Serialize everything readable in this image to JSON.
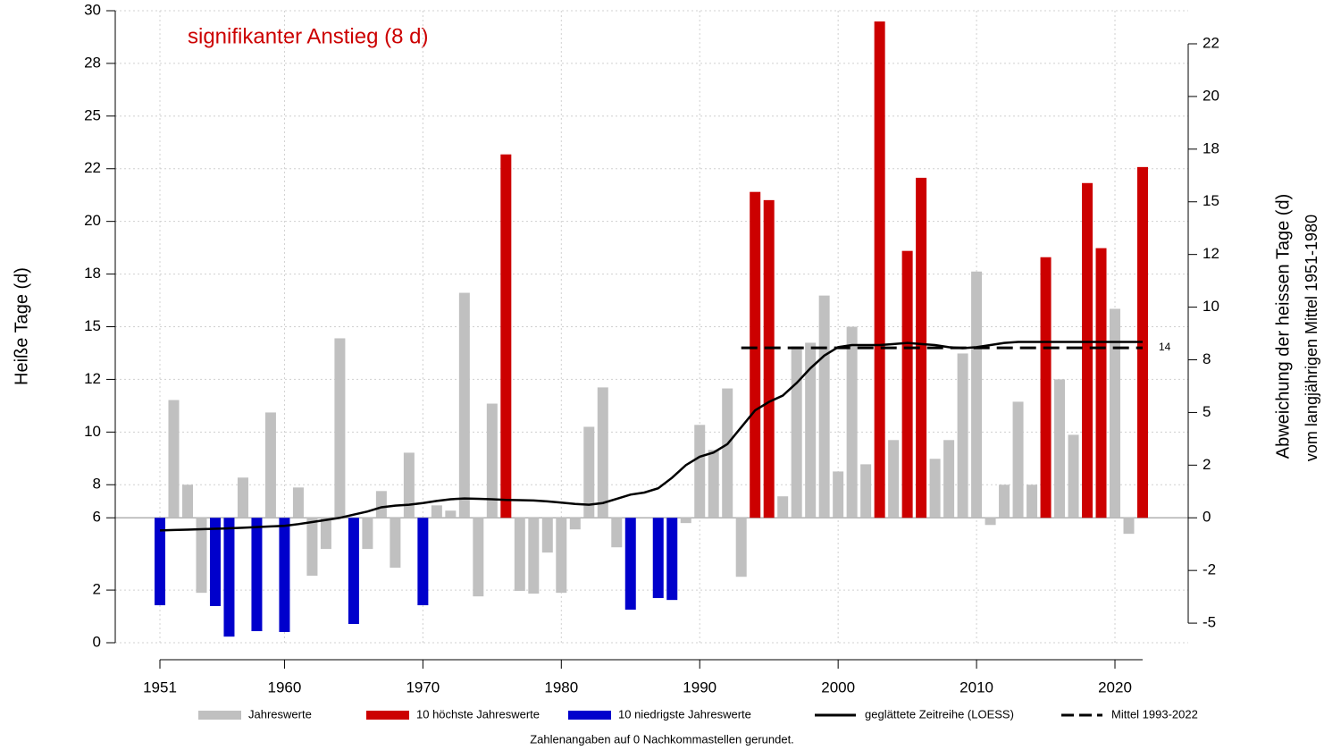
{
  "chart_data": {
    "type": "bar",
    "annotation": "signifikanter Anstieg (8 d)",
    "ylabel": "Heiße Tage (d)",
    "y2label": [
      "Abweichung der heissen Tage (d)",
      "vom langjährigen Mittel 1951-1980"
    ],
    "footnote": "Zahlenangaben auf 0 Nachkommastellen gerundet.",
    "grid": true,
    "xlim": [
      1951,
      2022
    ],
    "xticks": [
      1951,
      1960,
      1970,
      1980,
      1990,
      2000,
      2010,
      2020
    ],
    "ylim": [
      0,
      30
    ],
    "yticks": [
      0,
      {
        "value": 2.5,
        "label": "2"
      },
      {
        "value": 5.93,
        "label": "6"
      },
      {
        "value": 7.5,
        "label": "8"
      },
      10,
      {
        "value": 12.5,
        "label": "12"
      },
      15,
      {
        "value": 17.5,
        "label": "18"
      },
      20,
      {
        "value": 22.5,
        "label": "22"
      },
      25,
      {
        "value": 27.5,
        "label": "28"
      },
      30
    ],
    "y2lim": [
      -5.93,
      24.07
    ],
    "y2ticks": [
      -5,
      {
        "value": -2.5,
        "label": "-2"
      },
      0,
      {
        "value": 2.5,
        "label": "2"
      },
      5,
      {
        "value": 7.5,
        "label": "8"
      },
      10,
      {
        "value": 12.5,
        "label": "12"
      },
      15,
      {
        "value": 17.5,
        "label": "18"
      },
      20,
      {
        "value": 22.5,
        "label": "22"
      }
    ],
    "x": [
      1951,
      1952,
      1953,
      1954,
      1955,
      1956,
      1957,
      1958,
      1959,
      1960,
      1961,
      1962,
      1963,
      1964,
      1965,
      1966,
      1967,
      1968,
      1969,
      1970,
      1971,
      1972,
      1973,
      1974,
      1975,
      1976,
      1977,
      1978,
      1979,
      1980,
      1981,
      1982,
      1983,
      1984,
      1985,
      1986,
      1987,
      1988,
      1989,
      1990,
      1991,
      1992,
      1993,
      1994,
      1995,
      1996,
      1997,
      1998,
      1999,
      2000,
      2001,
      2002,
      2003,
      2004,
      2005,
      2006,
      2007,
      2008,
      2009,
      2010,
      2011,
      2012,
      2013,
      2014,
      2015,
      2016,
      2017,
      2018,
      2019,
      2020,
      2021,
      2022
    ],
    "series": [
      {
        "name": "Jahreswerte",
        "type": "bar",
        "color": "#c0c0c0",
        "axis": "y2",
        "values": [
          null,
          5.59,
          1.57,
          -3.56,
          null,
          null,
          1.91,
          null,
          5,
          null,
          1.44,
          -2.75,
          -1.48,
          8.52,
          null,
          -1.48,
          1.27,
          -2.37,
          3.09,
          null,
          0.59,
          0.34,
          10.68,
          -3.73,
          5.42,
          null,
          -3.47,
          -3.6,
          -1.65,
          -3.56,
          -0.55,
          4.32,
          6.19,
          -1.4,
          null,
          0,
          null,
          null,
          -0.25,
          4.41,
          3.22,
          6.14,
          -2.8,
          null,
          null,
          1.02,
          8.14,
          8.31,
          10.55,
          2.2,
          9.07,
          2.54,
          null,
          3.69,
          null,
          null,
          2.8,
          3.69,
          7.8,
          11.69,
          -0.34,
          1.57,
          5.51,
          1.57,
          null,
          6.57,
          3.94,
          null,
          null,
          9.92,
          -0.76,
          null
        ]
      },
      {
        "name": "10 höchste Jahreswerte",
        "type": "bar",
        "color": "#cc0000",
        "axis": "y2",
        "values": [
          null,
          null,
          null,
          null,
          null,
          null,
          null,
          null,
          null,
          null,
          null,
          null,
          null,
          null,
          null,
          null,
          null,
          null,
          null,
          null,
          null,
          null,
          null,
          null,
          null,
          17.25,
          null,
          null,
          null,
          null,
          null,
          null,
          null,
          null,
          null,
          null,
          null,
          null,
          null,
          null,
          null,
          null,
          null,
          15.47,
          15.08,
          null,
          null,
          null,
          null,
          null,
          null,
          null,
          23.56,
          null,
          12.67,
          16.14,
          null,
          null,
          null,
          null,
          null,
          null,
          null,
          null,
          12.37,
          null,
          null,
          15.89,
          12.8,
          null,
          null,
          16.65
        ]
      },
      {
        "name": "10 niedrigste Jahreswerte",
        "type": "bar",
        "color": "#0000cc",
        "axis": "y2",
        "values": [
          -4.15,
          null,
          null,
          null,
          -4.19,
          -5.64,
          null,
          -5.38,
          null,
          -5.42,
          null,
          null,
          null,
          null,
          -5.04,
          null,
          null,
          null,
          null,
          -4.15,
          null,
          null,
          null,
          null,
          null,
          null,
          null,
          null,
          null,
          null,
          null,
          null,
          null,
          null,
          -4.36,
          null,
          -3.81,
          -3.9,
          null,
          null,
          null,
          null,
          null,
          null,
          null,
          null,
          null,
          null,
          null,
          null,
          null,
          null,
          null,
          null,
          null,
          null,
          null,
          null,
          null,
          null,
          null,
          null,
          null,
          null,
          null,
          null,
          null,
          null,
          null,
          null,
          null,
          null
        ]
      },
      {
        "name": "geglättete Zeitreihe (LOESS)",
        "type": "line",
        "color": "#000000",
        "axis": "y2",
        "values": [
          -0.6,
          -0.58,
          -0.56,
          -0.54,
          -0.52,
          -0.5,
          -0.47,
          -0.44,
          -0.41,
          -0.38,
          -0.3,
          -0.2,
          -0.1,
          0,
          0.15,
          0.3,
          0.5,
          0.58,
          0.62,
          0.7,
          0.8,
          0.88,
          0.92,
          0.9,
          0.88,
          0.85,
          0.84,
          0.82,
          0.78,
          0.72,
          0.66,
          0.62,
          0.7,
          0.9,
          1.1,
          1.2,
          1.4,
          1.9,
          2.5,
          2.9,
          3.1,
          3.5,
          4.3,
          5.1,
          5.5,
          5.8,
          6.4,
          7.1,
          7.7,
          8.1,
          8.2,
          8.2,
          8.2,
          8.25,
          8.3,
          8.25,
          8.2,
          8.1,
          8.05,
          8.1,
          8.2,
          8.3,
          8.35,
          8.35,
          8.35,
          8.35,
          8.35,
          8.35,
          8.35,
          8.35,
          8.35,
          8.35
        ]
      },
      {
        "name": "Mittel 1993-2022",
        "type": "line",
        "dashed": true,
        "color": "#000000",
        "axis": "y2",
        "x": [
          1993,
          2022
        ],
        "values": [
          8.07,
          8.07
        ],
        "label_value": 14
      }
    ]
  }
}
